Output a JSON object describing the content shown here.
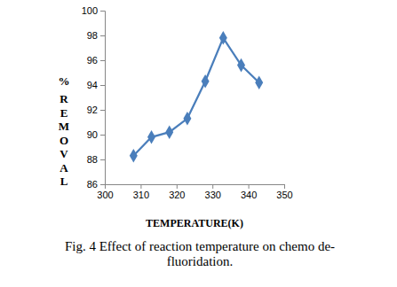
{
  "chart_data": {
    "type": "line",
    "title": "Fig. 4 Effect of reaction temperature on chemo de-fluoridation.",
    "x_label": "TEMPERATURE(K)",
    "y_label": "% REMOVAL",
    "x": [
      308,
      313,
      318,
      323,
      328,
      333,
      338,
      343
    ],
    "values": [
      88.3,
      89.8,
      90.2,
      91.3,
      94.3,
      97.8,
      95.6,
      94.2
    ],
    "color": "#4a7ebb",
    "marker": "diamond",
    "line_style": "solid",
    "xlim": [
      300,
      350
    ],
    "xticks": [
      300,
      310,
      320,
      330,
      340,
      350
    ],
    "ylim": [
      86,
      100
    ],
    "yticks": [
      86,
      88,
      90,
      92,
      94,
      96,
      98,
      100
    ],
    "grid": false
  }
}
